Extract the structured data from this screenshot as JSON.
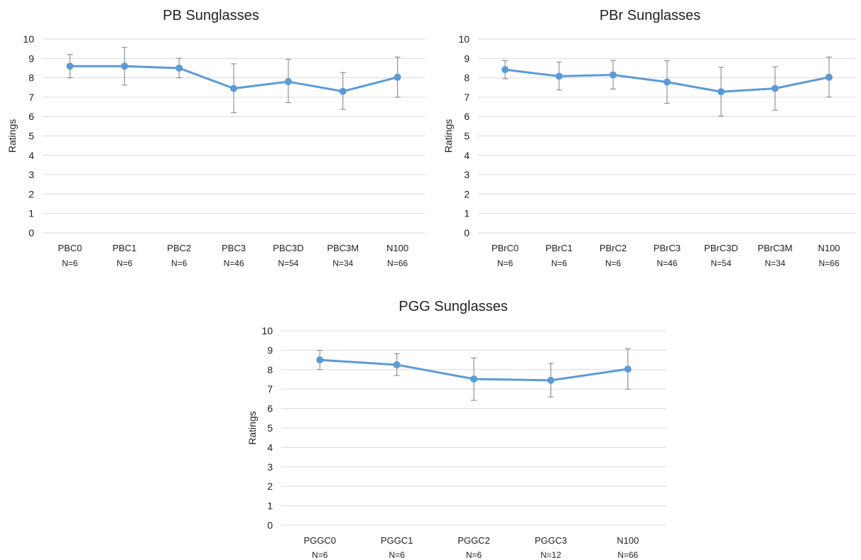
{
  "chart_data": [
    {
      "type": "line",
      "title": "PB Sunglasses",
      "ylabel": "Ratings",
      "xlabel": "",
      "ylim": [
        0,
        10
      ],
      "yticks": [
        0,
        1,
        2,
        3,
        4,
        5,
        6,
        7,
        8,
        9,
        10
      ],
      "categories": [
        "PBC0",
        "PBC1",
        "PBC2",
        "PBC3",
        "PBC3D",
        "PBC3M",
        "N100"
      ],
      "n_labels": [
        "N=6",
        "N=6",
        "N=6",
        "N=46",
        "N=54",
        "N=34",
        "N=66"
      ],
      "series": [
        {
          "values": [
            8.6,
            8.6,
            8.5,
            7.45,
            7.8,
            7.3,
            8.03
          ],
          "error_low": [
            8.0,
            7.62,
            8.0,
            6.2,
            6.72,
            6.37,
            7.0
          ],
          "error_high": [
            9.2,
            9.57,
            9.0,
            8.72,
            8.95,
            8.27,
            9.07
          ],
          "color": "#5b9bd5"
        }
      ],
      "grid": true
    },
    {
      "type": "line",
      "title": "PBr Sunglasses",
      "ylabel": "Ratings",
      "xlabel": "",
      "ylim": [
        0,
        10
      ],
      "yticks": [
        0,
        1,
        2,
        3,
        4,
        5,
        6,
        7,
        8,
        9,
        10
      ],
      "categories": [
        "PBrC0",
        "PBrC1",
        "PBrC2",
        "PBrC3",
        "PBrC3D",
        "PBrC3M",
        "N100"
      ],
      "n_labels": [
        "N=6",
        "N=6",
        "N=6",
        "N=46",
        "N=54",
        "N=34",
        "N=66"
      ],
      "series": [
        {
          "values": [
            8.42,
            8.08,
            8.15,
            7.78,
            7.28,
            7.45,
            8.03
          ],
          "error_low": [
            7.95,
            7.37,
            7.42,
            6.68,
            6.02,
            6.33,
            7.0
          ],
          "error_high": [
            8.88,
            8.82,
            8.9,
            8.88,
            8.54,
            8.57,
            9.07
          ],
          "color": "#5b9bd5"
        }
      ],
      "grid": true
    },
    {
      "type": "line",
      "title": "PGG Sunglasses",
      "ylabel": "Ratings",
      "xlabel": "",
      "ylim": [
        0,
        10
      ],
      "yticks": [
        0,
        1,
        2,
        3,
        4,
        5,
        6,
        7,
        8,
        9,
        10
      ],
      "categories": [
        "PGGC0",
        "PGGC1",
        "PGGC2",
        "PGGC3",
        "N100"
      ],
      "n_labels": [
        "N=6",
        "N=6",
        "N=6",
        "N=12",
        "N=66"
      ],
      "series": [
        {
          "values": [
            8.5,
            8.25,
            7.52,
            7.45,
            8.03
          ],
          "error_low": [
            8.0,
            7.7,
            6.42,
            6.6,
            7.0
          ],
          "error_high": [
            9.0,
            8.82,
            8.6,
            8.32,
            9.07
          ],
          "color": "#5b9bd5"
        }
      ],
      "grid": true
    }
  ]
}
